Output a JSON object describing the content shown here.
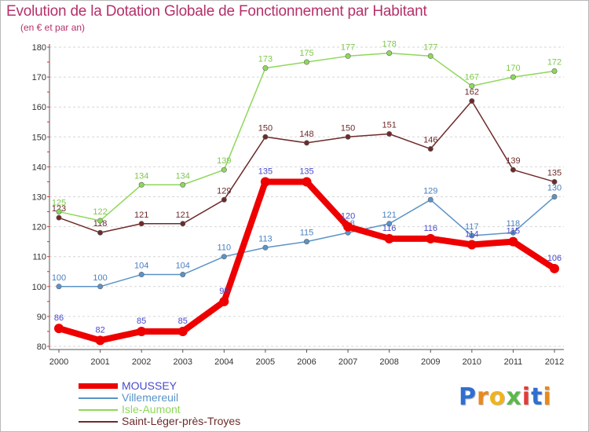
{
  "header": {
    "title": "Evolution de la Dotation Globale de Fonctionnement par Habitant",
    "subtitle": "(en € et par an)"
  },
  "logo": {
    "letters": [
      "P",
      "r",
      "o",
      "x",
      "i",
      "t",
      "i"
    ],
    "colors": [
      "#2f6fd0",
      "#e8891e",
      "#f0b419",
      "#5bb84a",
      "#e23a3a",
      "#2f6fd0",
      "#e8891e"
    ]
  },
  "chart_data": {
    "type": "line",
    "title": "Evolution de la Dotation Globale de Fonctionnement par Habitant",
    "subtitle": "(en € et par an)",
    "x": [
      "2000",
      "2001",
      "2002",
      "2003",
      "2004",
      "2005",
      "2006",
      "2007",
      "2008",
      "2009",
      "2010",
      "2011",
      "2012"
    ],
    "ylim": [
      80,
      180
    ],
    "yticks": [
      "80",
      "90",
      "100",
      "110",
      "120",
      "130",
      "140",
      "150",
      "160",
      "170",
      "180"
    ],
    "grid": "horizontal dashed",
    "legend_position": "bottom-left",
    "series": [
      {
        "name": "MOUSSEY",
        "color": "#ee0000",
        "label_color": "#4a4acc",
        "weight": "thick",
        "values": [
          86,
          82,
          85,
          85,
          95,
          135,
          135,
          120,
          116,
          116,
          114,
          115,
          106
        ],
        "labels": [
          "86",
          "82",
          "85",
          "85",
          "95",
          "135",
          "135",
          "120",
          "116",
          "116",
          "114",
          "115",
          "106"
        ]
      },
      {
        "name": "Villemereuil",
        "color": "#5a93c8",
        "label_color": "#4a7fc0",
        "weight": "thin",
        "values": [
          100,
          100,
          104,
          104,
          110,
          113,
          115,
          118,
          121,
          129,
          117,
          118,
          130
        ],
        "labels": [
          "100",
          "100",
          "104",
          "104",
          "110",
          "113",
          "115",
          "118",
          "121",
          "129",
          "117",
          "118",
          "130"
        ]
      },
      {
        "name": "Isle-Aumont",
        "color": "#8ed85a",
        "label_color": "#7fc84c",
        "weight": "thin",
        "values": [
          125,
          122,
          134,
          134,
          139,
          173,
          175,
          177,
          178,
          177,
          167,
          170,
          172
        ],
        "labels": [
          "125",
          "122",
          "134",
          "134",
          "139",
          "173",
          "175",
          "177",
          "178",
          "177",
          "167",
          "170",
          "172"
        ]
      },
      {
        "name": "Saint-Léger-près-Troyes",
        "color": "#6e2a2a",
        "label_color": "#6e2a2a",
        "weight": "thin",
        "values": [
          123,
          118,
          121,
          121,
          129,
          150,
          148,
          150,
          151,
          146,
          162,
          139,
          135
        ],
        "labels": [
          "123",
          "118",
          "121",
          "121",
          "129",
          "150",
          "148",
          "150",
          "151",
          "146",
          "162",
          "139",
          "135"
        ]
      }
    ]
  }
}
